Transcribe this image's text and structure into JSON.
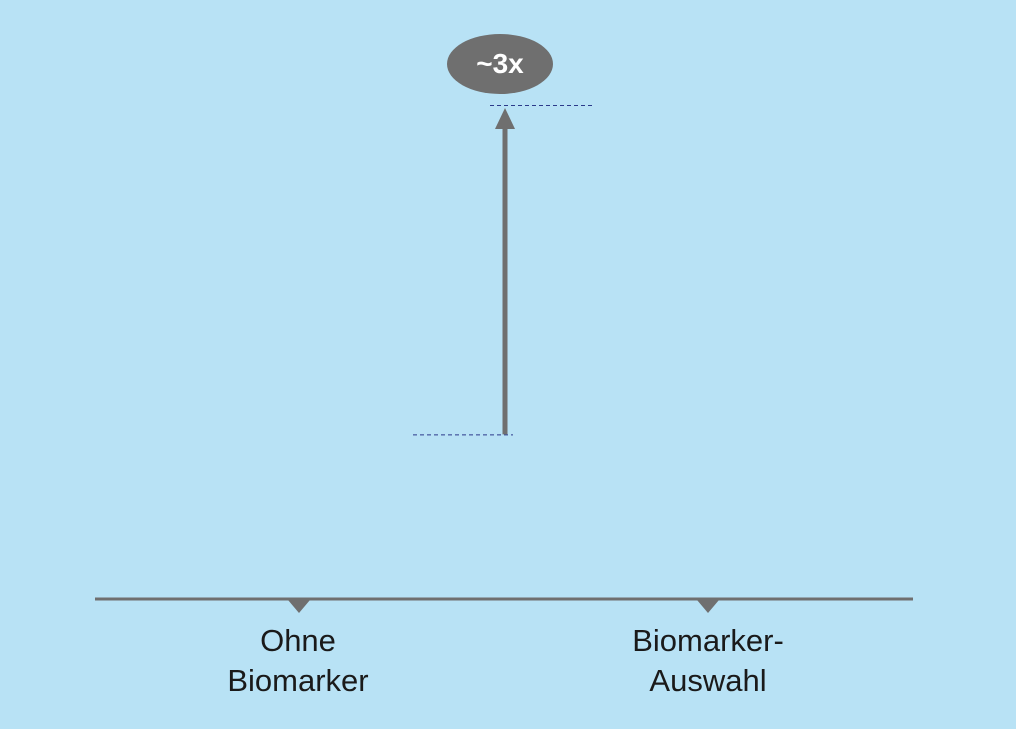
{
  "chart_data": {
    "type": "bar",
    "categories": [
      [
        "Ohne",
        "Biomarker"
      ],
      [
        "Biomarker-",
        "Auswahl"
      ]
    ],
    "values": [
      1,
      3
    ],
    "annotation": "~3x",
    "title": "",
    "xlabel": "",
    "ylabel": "",
    "ylim": [
      0,
      3.2
    ],
    "grid": false,
    "legend": "none"
  },
  "colors": {
    "background": "#b8e2f5",
    "bar": "#b8e2f5",
    "axis": "#6f6f6f",
    "arrow": "#6f6f6f",
    "guide": "#2b3a8a",
    "badge": "#6f6f6f"
  }
}
